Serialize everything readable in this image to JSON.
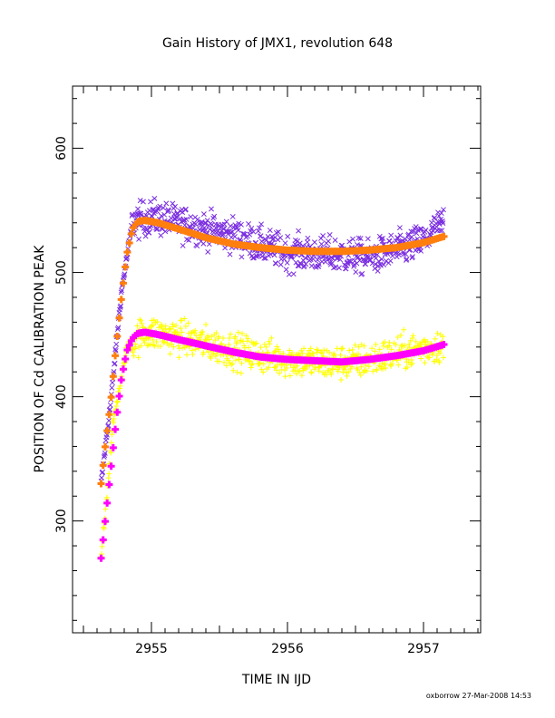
{
  "chart_data": {
    "type": "scatter",
    "title": "Gain History of JMX1, revolution 648",
    "xlabel": "TIME IN IJD",
    "ylabel": "POSITION OF Cd CALIBRATION PEAK",
    "xlim": [
      2954.42,
      2957.42
    ],
    "ylim": [
      210,
      650
    ],
    "x_ticks": [
      2955,
      2956,
      2957
    ],
    "x_tick_labels": [
      "2955",
      "2956",
      "2957"
    ],
    "y_ticks": [
      300,
      400,
      500,
      600
    ],
    "y_tick_labels": [
      "300",
      "400",
      "500",
      "600"
    ],
    "grid": false,
    "footer": "oxborrow 27-Mar-2008 14:53",
    "series": [
      {
        "marker": "x",
        "color": "#7a2ee0",
        "x_range": [
          2954.63,
          2957.15
        ],
        "scatter_about_fit": 12,
        "values": [
          [
            2954.63,
            330
          ],
          [
            2954.7,
            395
          ],
          [
            2954.78,
            485
          ],
          [
            2954.86,
            540
          ],
          [
            2955.0,
            545
          ],
          [
            2955.2,
            540
          ],
          [
            2955.4,
            535
          ],
          [
            2955.6,
            530
          ],
          [
            2955.8,
            522
          ],
          [
            2956.0,
            516
          ],
          [
            2956.2,
            515
          ],
          [
            2956.4,
            514
          ],
          [
            2956.6,
            512
          ],
          [
            2956.8,
            518
          ],
          [
            2957.0,
            525
          ],
          [
            2957.15,
            540
          ]
        ]
      },
      {
        "marker": "curve",
        "color": "#ff7f0e",
        "values": [
          [
            2954.63,
            330
          ],
          [
            2954.66,
            360
          ],
          [
            2954.7,
            395
          ],
          [
            2954.74,
            440
          ],
          [
            2954.78,
            480
          ],
          [
            2954.82,
            515
          ],
          [
            2954.86,
            535
          ],
          [
            2954.9,
            541
          ],
          [
            2954.95,
            542
          ],
          [
            2955.05,
            540
          ],
          [
            2955.2,
            535
          ],
          [
            2955.4,
            528
          ],
          [
            2955.6,
            523
          ],
          [
            2955.8,
            520
          ],
          [
            2956.0,
            518
          ],
          [
            2956.2,
            517
          ],
          [
            2956.4,
            517
          ],
          [
            2956.6,
            518
          ],
          [
            2956.8,
            520
          ],
          [
            2957.0,
            524
          ],
          [
            2957.15,
            529
          ]
        ]
      },
      {
        "marker": "+",
        "color": "#ffff00",
        "x_range": [
          2954.63,
          2957.15
        ],
        "scatter_about_fit": 12,
        "values": [
          [
            2954.63,
            270
          ],
          [
            2954.72,
            380
          ],
          [
            2954.82,
            440
          ],
          [
            2954.95,
            452
          ],
          [
            2955.2,
            448
          ],
          [
            2955.5,
            440
          ],
          [
            2955.8,
            433
          ],
          [
            2956.0,
            430
          ],
          [
            2956.3,
            427
          ],
          [
            2956.5,
            428
          ],
          [
            2956.7,
            432
          ],
          [
            2956.9,
            437
          ],
          [
            2957.15,
            442
          ]
        ]
      },
      {
        "marker": "curve",
        "color": "#ff00ff",
        "values": [
          [
            2954.63,
            270
          ],
          [
            2954.66,
            300
          ],
          [
            2954.7,
            340
          ],
          [
            2954.74,
            380
          ],
          [
            2954.78,
            415
          ],
          [
            2954.82,
            437
          ],
          [
            2954.86,
            447
          ],
          [
            2954.9,
            451
          ],
          [
            2954.95,
            452
          ],
          [
            2955.05,
            450
          ],
          [
            2955.2,
            446
          ],
          [
            2955.4,
            441
          ],
          [
            2955.6,
            436
          ],
          [
            2955.8,
            432
          ],
          [
            2956.0,
            430
          ],
          [
            2956.2,
            429
          ],
          [
            2956.4,
            428
          ],
          [
            2956.6,
            430
          ],
          [
            2956.8,
            433
          ],
          [
            2957.0,
            437
          ],
          [
            2957.15,
            442
          ]
        ]
      }
    ]
  }
}
